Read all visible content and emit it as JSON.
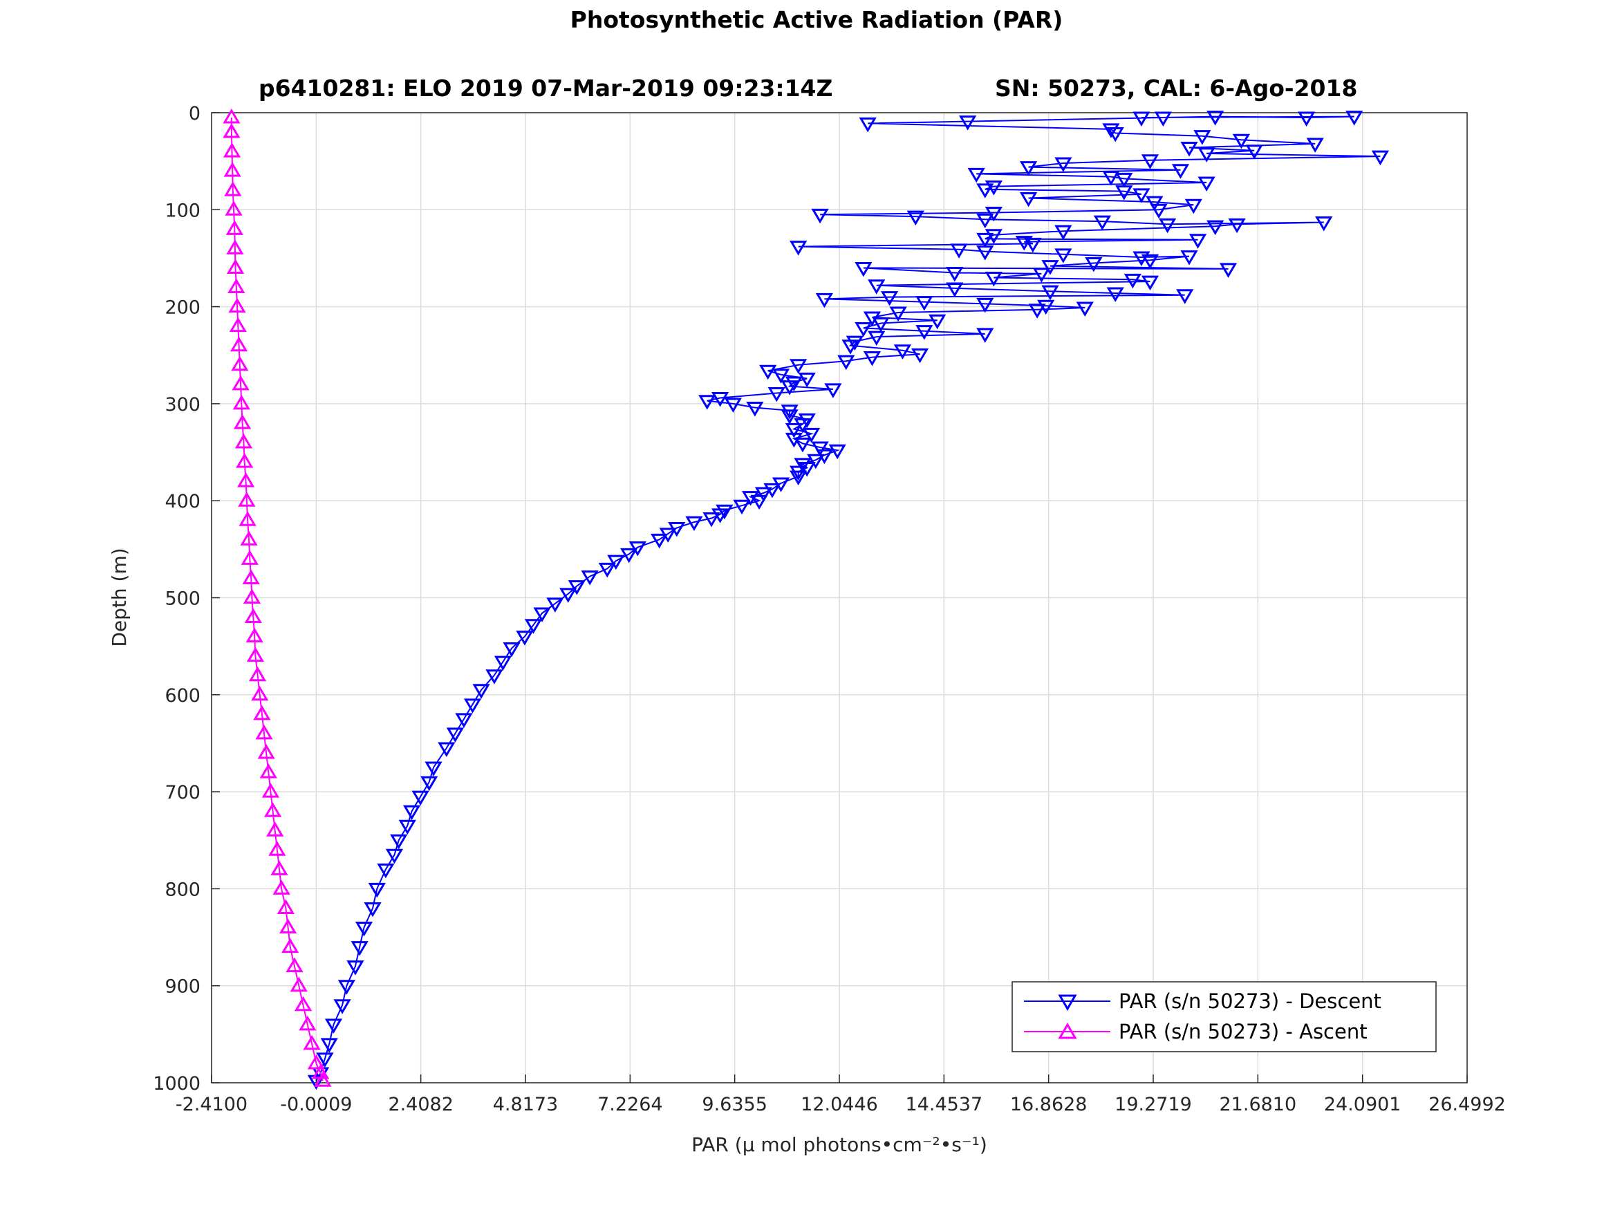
{
  "chart_data": {
    "type": "line",
    "title": "Photosynthetic Active Radiation (PAR)",
    "subtitle_left": "p6410281: ELO 2019 07-Mar-2019 09:23:14Z",
    "subtitle_right": "SN: 50273, CAL: 6-Ago-2018",
    "xlabel": "PAR (μ mol photons•cm⁻²•s⁻¹)",
    "ylabel": "Depth (m)",
    "xlim": [
      -2.41,
      26.4992
    ],
    "ylim": [
      0,
      1000
    ],
    "y_reversed": true,
    "grid": true,
    "legend_position": "bottom-right",
    "x_ticks": [
      "-2.4100",
      "-0.0009",
      "2.4082",
      "4.8173",
      "7.2264",
      "9.6355",
      "12.0446",
      "14.4537",
      "16.8628",
      "19.2719",
      "21.6810",
      "24.0901",
      "26.4992"
    ],
    "y_ticks": [
      "0",
      "100",
      "200",
      "300",
      "400",
      "500",
      "600",
      "700",
      "800",
      "900",
      "1000"
    ],
    "series": [
      {
        "name": "PAR (s/n 50273) - Descent",
        "color": "#0000ff",
        "marker": "triangle-down",
        "points": [
          [
            19.0,
            5
          ],
          [
            23.9,
            4
          ],
          [
            22.8,
            5
          ],
          [
            20.7,
            4
          ],
          [
            19.5,
            5
          ],
          [
            15.0,
            9
          ],
          [
            12.7,
            11
          ],
          [
            18.3,
            17
          ],
          [
            18.4,
            21
          ],
          [
            20.4,
            24
          ],
          [
            21.3,
            28
          ],
          [
            23.0,
            32
          ],
          [
            20.1,
            36
          ],
          [
            21.6,
            39
          ],
          [
            20.5,
            42
          ],
          [
            24.5,
            45
          ],
          [
            19.2,
            49
          ],
          [
            17.2,
            52
          ],
          [
            16.4,
            56
          ],
          [
            19.9,
            59
          ],
          [
            15.2,
            63
          ],
          [
            18.3,
            66
          ],
          [
            18.6,
            68
          ],
          [
            20.5,
            72
          ],
          [
            15.6,
            76
          ],
          [
            15.4,
            79
          ],
          [
            18.6,
            81
          ],
          [
            19.0,
            84
          ],
          [
            16.4,
            88
          ],
          [
            19.3,
            92
          ],
          [
            20.2,
            95
          ],
          [
            19.4,
            100
          ],
          [
            15.6,
            103
          ],
          [
            11.6,
            105
          ],
          [
            13.8,
            107
          ],
          [
            15.4,
            110
          ],
          [
            18.1,
            112
          ],
          [
            19.6,
            115
          ],
          [
            23.2,
            113
          ],
          [
            21.2,
            115
          ],
          [
            20.7,
            117
          ],
          [
            17.2,
            122
          ],
          [
            15.6,
            126
          ],
          [
            15.4,
            130
          ],
          [
            20.3,
            131
          ],
          [
            16.3,
            133
          ],
          [
            16.5,
            135
          ],
          [
            11.1,
            138
          ],
          [
            14.8,
            141
          ],
          [
            15.4,
            143
          ],
          [
            17.2,
            146
          ],
          [
            19.0,
            149
          ],
          [
            20.1,
            148
          ],
          [
            19.2,
            152
          ],
          [
            17.9,
            155
          ],
          [
            16.9,
            158
          ],
          [
            21.0,
            161
          ],
          [
            12.6,
            160
          ],
          [
            14.7,
            165
          ],
          [
            16.7,
            166
          ],
          [
            15.6,
            170
          ],
          [
            18.8,
            172
          ],
          [
            19.2,
            174
          ],
          [
            12.9,
            178
          ],
          [
            14.7,
            181
          ],
          [
            16.9,
            184
          ],
          [
            18.4,
            186
          ],
          [
            20.0,
            188
          ],
          [
            13.2,
            190
          ],
          [
            11.7,
            192
          ],
          [
            14.0,
            195
          ],
          [
            15.4,
            197
          ],
          [
            16.8,
            199
          ],
          [
            17.7,
            201
          ],
          [
            16.6,
            203
          ],
          [
            13.4,
            206
          ],
          [
            12.8,
            211
          ],
          [
            14.3,
            214
          ],
          [
            13.0,
            217
          ],
          [
            12.6,
            222
          ],
          [
            14.0,
            225
          ],
          [
            15.4,
            228
          ],
          [
            12.9,
            231
          ],
          [
            12.4,
            236
          ],
          [
            12.3,
            240
          ],
          [
            13.5,
            245
          ],
          [
            13.9,
            249
          ],
          [
            12.8,
            252
          ],
          [
            12.2,
            256
          ],
          [
            11.1,
            260
          ],
          [
            10.4,
            266
          ],
          [
            10.7,
            270
          ],
          [
            11.3,
            274
          ],
          [
            11.0,
            278
          ],
          [
            10.9,
            282
          ],
          [
            11.9,
            285
          ],
          [
            10.6,
            289
          ],
          [
            9.3,
            294
          ],
          [
            9.0,
            297
          ],
          [
            9.6,
            300
          ],
          [
            10.1,
            304
          ],
          [
            10.9,
            307
          ],
          [
            10.9,
            312
          ],
          [
            11.3,
            316
          ],
          [
            11.2,
            321
          ],
          [
            11.0,
            326
          ],
          [
            11.4,
            331
          ],
          [
            11.0,
            336
          ],
          [
            11.2,
            341
          ],
          [
            11.6,
            345
          ],
          [
            12.0,
            348
          ],
          [
            11.7,
            353
          ],
          [
            11.5,
            358
          ],
          [
            11.2,
            362
          ],
          [
            11.3,
            366
          ],
          [
            11.1,
            370
          ],
          [
            11.1,
            375
          ],
          [
            10.7,
            382
          ],
          [
            10.5,
            388
          ],
          [
            10.3,
            392
          ],
          [
            10.0,
            396
          ],
          [
            10.2,
            400
          ],
          [
            9.8,
            405
          ],
          [
            9.4,
            410
          ],
          [
            9.3,
            414
          ],
          [
            9.1,
            418
          ],
          [
            8.7,
            422
          ],
          [
            8.3,
            428
          ],
          [
            8.1,
            434
          ],
          [
            7.9,
            440
          ],
          [
            7.4,
            448
          ],
          [
            7.2,
            455
          ],
          [
            6.9,
            462
          ],
          [
            6.7,
            470
          ],
          [
            6.3,
            478
          ],
          [
            6.0,
            488
          ],
          [
            5.8,
            496
          ],
          [
            5.5,
            506
          ],
          [
            5.2,
            516
          ],
          [
            5.0,
            528
          ],
          [
            4.8,
            540
          ],
          [
            4.5,
            552
          ],
          [
            4.3,
            566
          ],
          [
            4.1,
            580
          ],
          [
            3.8,
            595
          ],
          [
            3.6,
            610
          ],
          [
            3.4,
            625
          ],
          [
            3.2,
            640
          ],
          [
            3.0,
            655
          ],
          [
            2.7,
            675
          ],
          [
            2.6,
            690
          ],
          [
            2.4,
            705
          ],
          [
            2.2,
            720
          ],
          [
            2.1,
            735
          ],
          [
            1.9,
            750
          ],
          [
            1.8,
            765
          ],
          [
            1.6,
            780
          ],
          [
            1.4,
            800
          ],
          [
            1.3,
            820
          ],
          [
            1.1,
            840
          ],
          [
            1.0,
            860
          ],
          [
            0.9,
            880
          ],
          [
            0.7,
            900
          ],
          [
            0.6,
            920
          ],
          [
            0.4,
            940
          ],
          [
            0.3,
            960
          ],
          [
            0.2,
            975
          ],
          [
            0.1,
            990
          ],
          [
            0.0,
            998
          ]
        ]
      },
      {
        "name": "PAR (s/n 50273) - Ascent",
        "color": "#ff00ff",
        "marker": "triangle-up",
        "points": [
          [
            0.15,
            998
          ],
          [
            0.1,
            990
          ],
          [
            0.0,
            980
          ],
          [
            -0.1,
            960
          ],
          [
            -0.2,
            940
          ],
          [
            -0.3,
            920
          ],
          [
            -0.4,
            900
          ],
          [
            -0.5,
            880
          ],
          [
            -0.6,
            860
          ],
          [
            -0.65,
            840
          ],
          [
            -0.7,
            820
          ],
          [
            -0.8,
            800
          ],
          [
            -0.85,
            780
          ],
          [
            -0.9,
            760
          ],
          [
            -0.95,
            740
          ],
          [
            -1.0,
            720
          ],
          [
            -1.05,
            700
          ],
          [
            -1.1,
            680
          ],
          [
            -1.15,
            660
          ],
          [
            -1.2,
            640
          ],
          [
            -1.25,
            620
          ],
          [
            -1.3,
            600
          ],
          [
            -1.35,
            580
          ],
          [
            -1.4,
            560
          ],
          [
            -1.42,
            540
          ],
          [
            -1.45,
            520
          ],
          [
            -1.48,
            500
          ],
          [
            -1.5,
            480
          ],
          [
            -1.53,
            460
          ],
          [
            -1.55,
            440
          ],
          [
            -1.58,
            420
          ],
          [
            -1.6,
            400
          ],
          [
            -1.62,
            380
          ],
          [
            -1.65,
            360
          ],
          [
            -1.67,
            340
          ],
          [
            -1.7,
            320
          ],
          [
            -1.72,
            300
          ],
          [
            -1.74,
            280
          ],
          [
            -1.76,
            260
          ],
          [
            -1.78,
            240
          ],
          [
            -1.8,
            220
          ],
          [
            -1.82,
            200
          ],
          [
            -1.84,
            180
          ],
          [
            -1.86,
            160
          ],
          [
            -1.87,
            140
          ],
          [
            -1.88,
            120
          ],
          [
            -1.9,
            100
          ],
          [
            -1.92,
            80
          ],
          [
            -1.93,
            60
          ],
          [
            -1.94,
            40
          ],
          [
            -1.95,
            20
          ],
          [
            -1.95,
            5
          ]
        ]
      }
    ]
  }
}
